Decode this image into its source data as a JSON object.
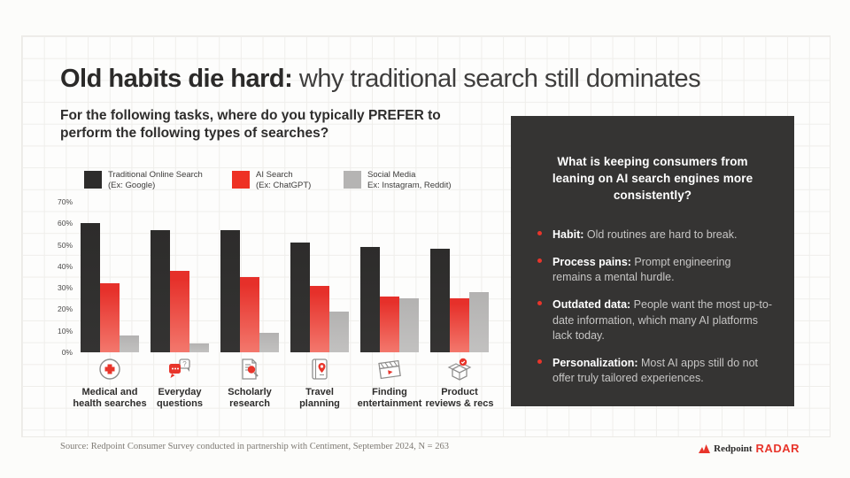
{
  "title": {
    "bold": "Old habits die hard:",
    "regular": " why traditional search still dominates"
  },
  "question": "For the following tasks, where do you typically PREFER to perform the following types of searches?",
  "legend": [
    {
      "line1": "Traditional Online Search",
      "line2": "(Ex: Google)",
      "color": "#2d2c2b"
    },
    {
      "line1": "AI Search",
      "line2": "(Ex: ChatGPT)",
      "color": "#ee3124"
    },
    {
      "line1": "Social Media",
      "line2": "Ex: Instagram, Reddit)",
      "color": "#b5b4b3"
    }
  ],
  "chart_data": {
    "type": "bar",
    "categories": [
      {
        "line1": "Medical and",
        "line2": "health searches",
        "icon": "medical-cross-icon"
      },
      {
        "line1": "Everyday",
        "line2": "questions",
        "icon": "chat-question-icon"
      },
      {
        "line1": "Scholarly",
        "line2": "research",
        "icon": "document-search-icon"
      },
      {
        "line1": "Travel",
        "line2": "planning",
        "icon": "travel-guide-icon"
      },
      {
        "line1": "Finding",
        "line2": "entertainment",
        "icon": "clapperboard-icon"
      },
      {
        "line1": "Product",
        "line2": "reviews & recs",
        "icon": "product-box-icon"
      }
    ],
    "series": [
      {
        "name": "Traditional Online Search (Ex: Google)",
        "color": "#2d2c2b",
        "values": [
          60,
          57,
          57,
          51,
          49,
          48
        ]
      },
      {
        "name": "AI Search (Ex: ChatGPT)",
        "color": "#ee3124",
        "values": [
          32,
          38,
          35,
          31,
          26,
          25
        ]
      },
      {
        "name": "Social Media (Ex: Instagram, Reddit)",
        "color": "#b5b4b3",
        "values": [
          8,
          4,
          9,
          19,
          25,
          28
        ]
      }
    ],
    "title": "",
    "xlabel": "",
    "ylabel": "",
    "ylim": [
      0,
      70
    ],
    "yticks": [
      "0%",
      "10%",
      "20%",
      "30%",
      "40%",
      "50%",
      "60%",
      "70%"
    ],
    "grid": true,
    "legend_position": "top"
  },
  "panel": {
    "heading": "What is keeping consumers from leaning on AI search engines more consistently?",
    "bullets": [
      {
        "term": "Habit:",
        "text": " Old routines are hard to break."
      },
      {
        "term": "Process pains:",
        "text": " Prompt engineering remains a mental hurdle."
      },
      {
        "term": "Outdated data:",
        "text": " People want the most up-to-date information, which many AI platforms lack today."
      },
      {
        "term": "Personalization:",
        "text": " Most AI apps still do not offer truly tailored experiences."
      }
    ]
  },
  "footer": {
    "source": "Source: Redpoint Consumer Survey conducted in partnership with Centiment, September 2024, N = 263",
    "logo_name": "Redpoint",
    "logo_radar": "RADAR"
  },
  "colors": {
    "accent_red": "#e8352b",
    "bar_dark": "#2d2c2b",
    "bar_gray": "#b5b4b3",
    "panel_bg": "#353433"
  }
}
